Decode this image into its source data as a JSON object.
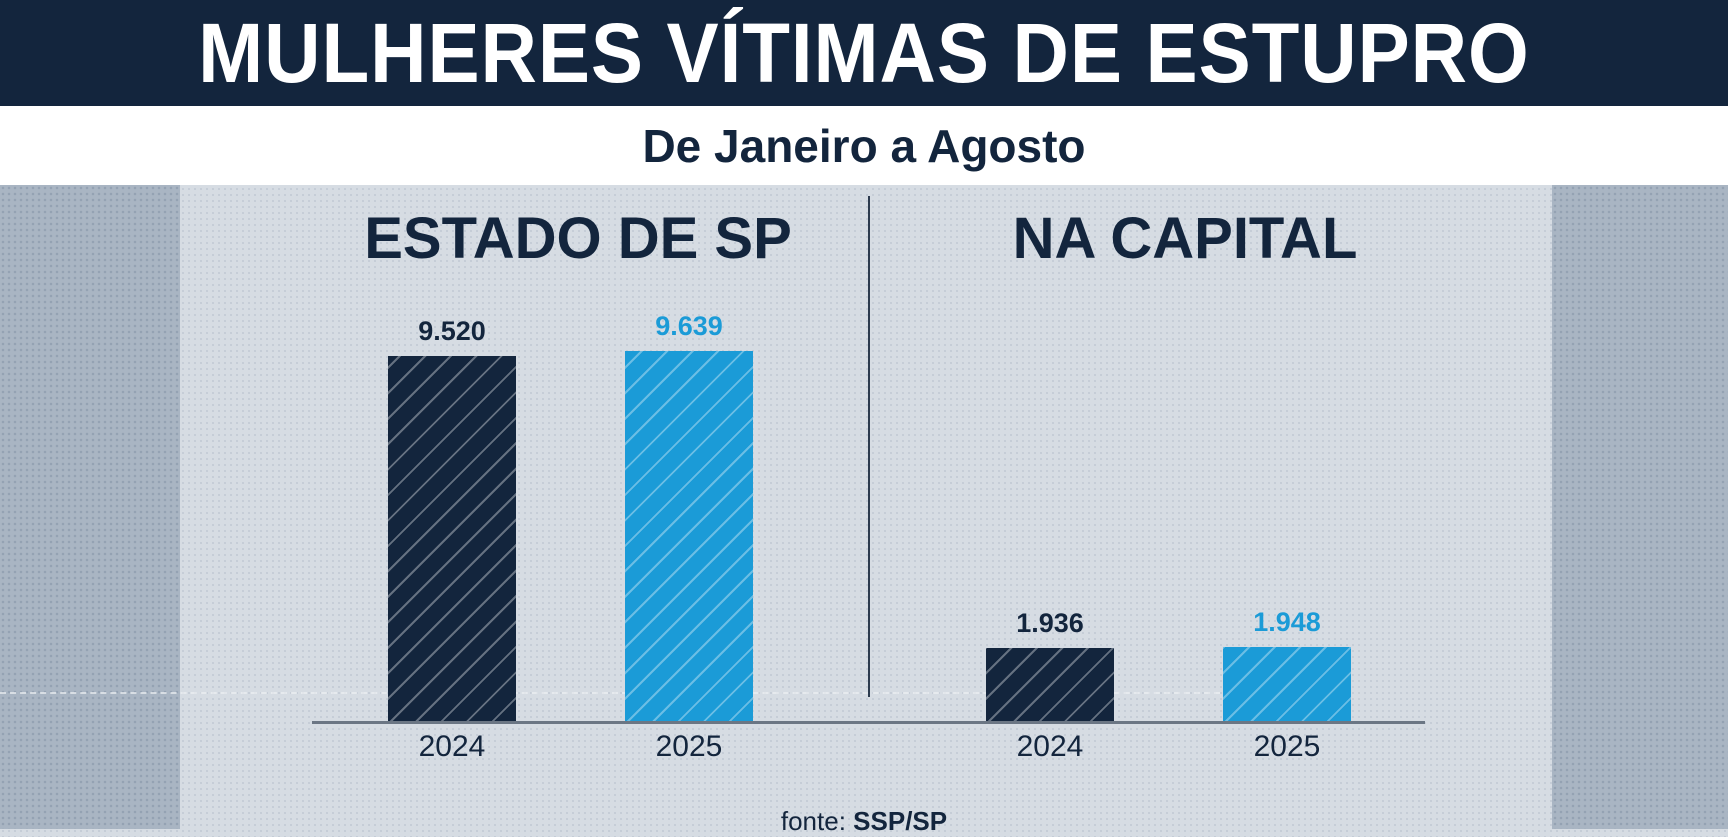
{
  "title": "MULHERES VÍTIMAS DE ESTUPRO",
  "subtitle": "De Janeiro a Agosto",
  "source": {
    "prefix": "fonte:",
    "name": "SSP/SP"
  },
  "colors": {
    "2024": "#13253d",
    "2025": "#1b9bd7",
    "header": "#13253d"
  },
  "chart_data": [
    {
      "type": "bar",
      "title": "ESTADO DE SP",
      "categories": [
        "2024",
        "2025"
      ],
      "values": [
        9520,
        9639
      ],
      "value_labels": [
        "9.520",
        "9.639"
      ],
      "grid": false
    },
    {
      "type": "bar",
      "title": "NA CAPITAL",
      "categories": [
        "2024",
        "2025"
      ],
      "values": [
        1936,
        1948
      ],
      "value_labels": [
        "1.936",
        "1.948"
      ],
      "grid": false
    }
  ]
}
